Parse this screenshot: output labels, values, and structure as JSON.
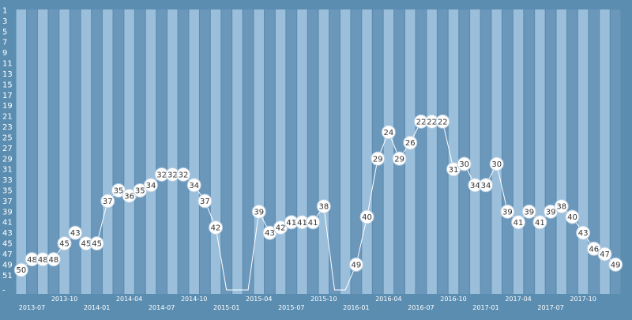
{
  "chart_data": {
    "type": "line",
    "title": "",
    "xlabel": "",
    "ylabel": "",
    "y_axis": {
      "reversed": true,
      "min": 1,
      "max": 52,
      "tick_labels": [
        "1",
        "3",
        "5",
        "7",
        "9",
        "11",
        "13",
        "15",
        "17",
        "19",
        "21",
        "23",
        "25",
        "27",
        "29",
        "31",
        "33",
        "35",
        "37",
        "39",
        "41",
        "43",
        "45",
        "47",
        "49",
        "51",
        "-"
      ]
    },
    "x_ticks": [
      "2013-07",
      "2013-10",
      "2014-01",
      "2014-04",
      "2014-07",
      "2014-10",
      "2015-01",
      "2015-04",
      "2015-07",
      "2015-10",
      "2016-01",
      "2016-04",
      "2016-07",
      "2016-10",
      "2017-01",
      "2017-04",
      "2017-07",
      "2017-10"
    ],
    "grid": "alternating vertical bands, one per month",
    "legend": "none",
    "colors": {
      "background": "#5b8db0",
      "band_light": "#9bbfdb",
      "band_dark": "#6b97bb",
      "line": "#ffffff",
      "marker_fill": "#ffffff",
      "label_text": "#333333",
      "tick_text": "#ffffff"
    },
    "series": [
      {
        "values": [
          50,
          48,
          48,
          48,
          45,
          43,
          45,
          45,
          37,
          35,
          36,
          35,
          34,
          32,
          32,
          32,
          34,
          37,
          42,
          null,
          null,
          null,
          39,
          43,
          42,
          41,
          41,
          41,
          38,
          null,
          null,
          49,
          40,
          29,
          24,
          29,
          26,
          22,
          22,
          22,
          31,
          30,
          34,
          34,
          30,
          39,
          41,
          39,
          41,
          39,
          38,
          40,
          43,
          46,
          47,
          49
        ],
        "x": [
          "2013-06",
          "2013-07",
          "2013-08",
          "2013-09",
          "2013-10",
          "2013-11",
          "2013-12",
          "2014-01",
          "2014-02",
          "2014-03",
          "2014-04",
          "2014-05",
          "2014-06",
          "2014-07",
          "2014-08",
          "2014-09",
          "2014-10",
          "2014-11",
          "2014-12",
          "2015-01",
          "2015-02",
          "2015-03",
          "2015-04",
          "2015-05",
          "2015-06",
          "2015-07",
          "2015-08",
          "2015-09",
          "2015-10",
          "2015-11",
          "2015-12",
          "2016-01",
          "2016-02",
          "2016-03",
          "2016-04",
          "2016-05",
          "2016-06",
          "2016-07",
          "2016-08",
          "2016-09",
          "2016-10",
          "2016-11",
          "2016-12",
          "2017-01",
          "2017-02",
          "2017-03",
          "2017-04",
          "2017-05",
          "2017-06",
          "2017-07",
          "2017-08",
          "2017-09",
          "2017-10",
          "2017-11",
          "2017-12",
          "2018-01"
        ]
      }
    ]
  }
}
